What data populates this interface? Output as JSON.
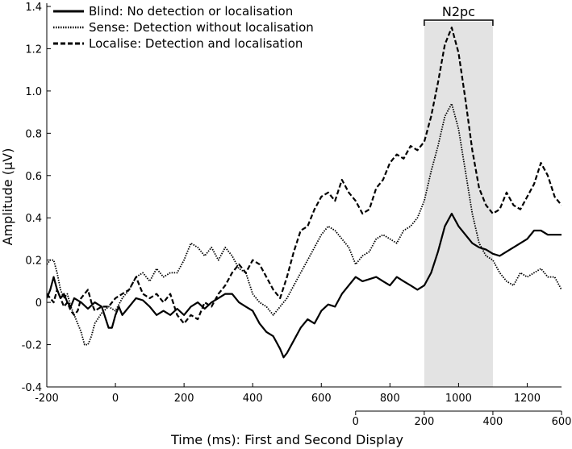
{
  "chart_data": {
    "type": "line",
    "xlabel": "Time (ms): First and Second Display",
    "ylabel": "Amplitude  (µV)",
    "xlim": [
      -200,
      1300
    ],
    "ylim": [
      -0.4,
      1.4
    ],
    "x_ticks": [
      "-200",
      "0",
      "200",
      "400",
      "600",
      "800",
      "1000",
      "1200"
    ],
    "y_ticks": [
      "-0.4",
      "-0.2",
      "0",
      "0.2",
      "0.4",
      "0.6",
      "0.8",
      "1.0",
      "1.2",
      "1.4"
    ],
    "secondary_x_ticks": [
      "0",
      "200",
      "400",
      "600"
    ],
    "secondary_xlim": [
      0,
      600
    ],
    "secondary_x_offset_ms": 700,
    "grid": false,
    "legend_position": "top-left",
    "shaded_region": {
      "label": "N2pc",
      "x": [
        900,
        1100
      ]
    },
    "series": [
      {
        "name": "Blind: No detection or localisation",
        "style": "solid",
        "points": [
          [
            -200,
            0.02
          ],
          [
            -190,
            0.06
          ],
          [
            -180,
            0.12
          ],
          [
            -170,
            0.06
          ],
          [
            -160,
            0.02
          ],
          [
            -150,
            0.04
          ],
          [
            -140,
            0.0
          ],
          [
            -130,
            -0.02
          ],
          [
            -120,
            0.02
          ],
          [
            -100,
            0.0
          ],
          [
            -80,
            -0.03
          ],
          [
            -60,
            0.0
          ],
          [
            -40,
            -0.02
          ],
          [
            -20,
            -0.12
          ],
          [
            -10,
            -0.12
          ],
          [
            0,
            -0.06
          ],
          [
            10,
            -0.02
          ],
          [
            20,
            -0.06
          ],
          [
            40,
            -0.02
          ],
          [
            60,
            0.02
          ],
          [
            80,
            0.01
          ],
          [
            100,
            -0.02
          ],
          [
            120,
            -0.06
          ],
          [
            140,
            -0.04
          ],
          [
            160,
            -0.06
          ],
          [
            180,
            -0.03
          ],
          [
            200,
            -0.06
          ],
          [
            220,
            -0.02
          ],
          [
            240,
            0.0
          ],
          [
            260,
            -0.03
          ],
          [
            280,
            0.0
          ],
          [
            300,
            0.02
          ],
          [
            320,
            0.04
          ],
          [
            340,
            0.04
          ],
          [
            360,
            0.0
          ],
          [
            380,
            -0.02
          ],
          [
            400,
            -0.04
          ],
          [
            420,
            -0.1
          ],
          [
            440,
            -0.14
          ],
          [
            460,
            -0.16
          ],
          [
            480,
            -0.22
          ],
          [
            490,
            -0.26
          ],
          [
            500,
            -0.24
          ],
          [
            520,
            -0.18
          ],
          [
            540,
            -0.12
          ],
          [
            560,
            -0.08
          ],
          [
            580,
            -0.1
          ],
          [
            600,
            -0.04
          ],
          [
            620,
            -0.01
          ],
          [
            640,
            -0.02
          ],
          [
            660,
            0.04
          ],
          [
            680,
            0.08
          ],
          [
            700,
            0.12
          ],
          [
            720,
            0.1
          ],
          [
            740,
            0.11
          ],
          [
            760,
            0.12
          ],
          [
            780,
            0.1
          ],
          [
            800,
            0.08
          ],
          [
            820,
            0.12
          ],
          [
            840,
            0.1
          ],
          [
            860,
            0.08
          ],
          [
            880,
            0.06
          ],
          [
            900,
            0.08
          ],
          [
            920,
            0.14
          ],
          [
            940,
            0.24
          ],
          [
            960,
            0.36
          ],
          [
            980,
            0.42
          ],
          [
            1000,
            0.36
          ],
          [
            1020,
            0.32
          ],
          [
            1040,
            0.28
          ],
          [
            1060,
            0.26
          ],
          [
            1080,
            0.25
          ],
          [
            1100,
            0.23
          ],
          [
            1120,
            0.22
          ],
          [
            1140,
            0.24
          ],
          [
            1160,
            0.26
          ],
          [
            1180,
            0.28
          ],
          [
            1200,
            0.3
          ],
          [
            1220,
            0.34
          ],
          [
            1240,
            0.34
          ],
          [
            1260,
            0.32
          ],
          [
            1280,
            0.32
          ],
          [
            1300,
            0.32
          ]
        ]
      },
      {
        "name": "Sense: Detection without localisation",
        "style": "dotted",
        "points": [
          [
            -200,
            0.18
          ],
          [
            -190,
            0.2
          ],
          [
            -180,
            0.2
          ],
          [
            -170,
            0.14
          ],
          [
            -160,
            0.06
          ],
          [
            -150,
            0.02
          ],
          [
            -140,
            0.04
          ],
          [
            -130,
            -0.02
          ],
          [
            -120,
            -0.06
          ],
          [
            -110,
            -0.1
          ],
          [
            -100,
            -0.14
          ],
          [
            -90,
            -0.2
          ],
          [
            -80,
            -0.2
          ],
          [
            -70,
            -0.16
          ],
          [
            -60,
            -0.1
          ],
          [
            -40,
            -0.05
          ],
          [
            -20,
            -0.02
          ],
          [
            0,
            -0.04
          ],
          [
            20,
            0.02
          ],
          [
            40,
            0.06
          ],
          [
            60,
            0.12
          ],
          [
            80,
            0.14
          ],
          [
            100,
            0.1
          ],
          [
            120,
            0.16
          ],
          [
            140,
            0.12
          ],
          [
            160,
            0.14
          ],
          [
            180,
            0.14
          ],
          [
            200,
            0.2
          ],
          [
            220,
            0.28
          ],
          [
            240,
            0.26
          ],
          [
            260,
            0.22
          ],
          [
            280,
            0.26
          ],
          [
            300,
            0.2
          ],
          [
            320,
            0.26
          ],
          [
            340,
            0.22
          ],
          [
            360,
            0.16
          ],
          [
            380,
            0.14
          ],
          [
            400,
            0.04
          ],
          [
            420,
            0.0
          ],
          [
            440,
            -0.02
          ],
          [
            460,
            -0.06
          ],
          [
            480,
            -0.02
          ],
          [
            500,
            0.02
          ],
          [
            520,
            0.08
          ],
          [
            540,
            0.14
          ],
          [
            560,
            0.2
          ],
          [
            580,
            0.26
          ],
          [
            600,
            0.32
          ],
          [
            620,
            0.36
          ],
          [
            640,
            0.34
          ],
          [
            660,
            0.3
          ],
          [
            680,
            0.26
          ],
          [
            700,
            0.18
          ],
          [
            720,
            0.22
          ],
          [
            740,
            0.24
          ],
          [
            760,
            0.3
          ],
          [
            780,
            0.32
          ],
          [
            800,
            0.3
          ],
          [
            820,
            0.28
          ],
          [
            840,
            0.34
          ],
          [
            860,
            0.36
          ],
          [
            880,
            0.4
          ],
          [
            900,
            0.48
          ],
          [
            920,
            0.62
          ],
          [
            940,
            0.74
          ],
          [
            960,
            0.88
          ],
          [
            980,
            0.94
          ],
          [
            1000,
            0.82
          ],
          [
            1020,
            0.62
          ],
          [
            1040,
            0.42
          ],
          [
            1060,
            0.28
          ],
          [
            1080,
            0.22
          ],
          [
            1100,
            0.2
          ],
          [
            1120,
            0.14
          ],
          [
            1140,
            0.1
          ],
          [
            1160,
            0.08
          ],
          [
            1180,
            0.14
          ],
          [
            1200,
            0.12
          ],
          [
            1220,
            0.14
          ],
          [
            1240,
            0.16
          ],
          [
            1260,
            0.12
          ],
          [
            1280,
            0.12
          ],
          [
            1300,
            0.06
          ]
        ]
      },
      {
        "name": "Localise: Detection and localisation",
        "style": "dashed",
        "points": [
          [
            -200,
            0.04
          ],
          [
            -190,
            0.02
          ],
          [
            -180,
            0.0
          ],
          [
            -170,
            0.06
          ],
          [
            -160,
            0.02
          ],
          [
            -150,
            -0.02
          ],
          [
            -140,
            0.0
          ],
          [
            -130,
            -0.04
          ],
          [
            -120,
            -0.06
          ],
          [
            -110,
            -0.04
          ],
          [
            -100,
            0.02
          ],
          [
            -90,
            0.04
          ],
          [
            -80,
            0.06
          ],
          [
            -70,
            0.0
          ],
          [
            -60,
            -0.04
          ],
          [
            -40,
            -0.02
          ],
          [
            -20,
            -0.02
          ],
          [
            0,
            0.02
          ],
          [
            20,
            0.04
          ],
          [
            40,
            0.06
          ],
          [
            60,
            0.12
          ],
          [
            80,
            0.04
          ],
          [
            100,
            0.02
          ],
          [
            120,
            0.04
          ],
          [
            140,
            0.0
          ],
          [
            160,
            0.04
          ],
          [
            180,
            -0.06
          ],
          [
            200,
            -0.1
          ],
          [
            220,
            -0.06
          ],
          [
            240,
            -0.08
          ],
          [
            260,
            0.0
          ],
          [
            280,
            -0.02
          ],
          [
            300,
            0.04
          ],
          [
            320,
            0.08
          ],
          [
            340,
            0.14
          ],
          [
            360,
            0.18
          ],
          [
            380,
            0.14
          ],
          [
            400,
            0.2
          ],
          [
            420,
            0.18
          ],
          [
            440,
            0.12
          ],
          [
            460,
            0.06
          ],
          [
            480,
            0.02
          ],
          [
            500,
            0.12
          ],
          [
            520,
            0.24
          ],
          [
            540,
            0.34
          ],
          [
            560,
            0.36
          ],
          [
            580,
            0.44
          ],
          [
            600,
            0.5
          ],
          [
            620,
            0.52
          ],
          [
            640,
            0.48
          ],
          [
            660,
            0.58
          ],
          [
            680,
            0.52
          ],
          [
            700,
            0.48
          ],
          [
            720,
            0.42
          ],
          [
            740,
            0.44
          ],
          [
            760,
            0.54
          ],
          [
            780,
            0.58
          ],
          [
            800,
            0.66
          ],
          [
            820,
            0.7
          ],
          [
            840,
            0.68
          ],
          [
            860,
            0.74
          ],
          [
            880,
            0.72
          ],
          [
            900,
            0.76
          ],
          [
            920,
            0.88
          ],
          [
            940,
            1.04
          ],
          [
            960,
            1.22
          ],
          [
            980,
            1.3
          ],
          [
            1000,
            1.18
          ],
          [
            1020,
            0.96
          ],
          [
            1040,
            0.72
          ],
          [
            1060,
            0.54
          ],
          [
            1080,
            0.46
          ],
          [
            1100,
            0.42
          ],
          [
            1120,
            0.44
          ],
          [
            1140,
            0.52
          ],
          [
            1160,
            0.46
          ],
          [
            1180,
            0.44
          ],
          [
            1200,
            0.5
          ],
          [
            1220,
            0.56
          ],
          [
            1240,
            0.66
          ],
          [
            1260,
            0.6
          ],
          [
            1280,
            0.5
          ],
          [
            1300,
            0.46
          ]
        ]
      }
    ]
  }
}
